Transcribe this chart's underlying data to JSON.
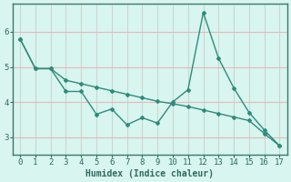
{
  "xlabel": "Humidex (Indice chaleur)",
  "x": [
    0,
    1,
    2,
    3,
    4,
    5,
    6,
    7,
    8,
    9,
    10,
    11,
    12,
    13,
    14,
    15,
    16,
    17
  ],
  "line1": [
    5.8,
    4.95,
    4.95,
    4.3,
    4.3,
    3.65,
    3.8,
    3.35,
    3.55,
    3.4,
    4.0,
    4.35,
    6.55,
    5.25,
    4.4,
    3.7,
    3.2,
    2.75
  ],
  "line2": [
    5.8,
    4.95,
    4.95,
    4.62,
    4.52,
    4.42,
    4.32,
    4.22,
    4.12,
    4.02,
    3.95,
    3.87,
    3.77,
    3.67,
    3.57,
    3.47,
    3.1,
    2.75
  ],
  "line_color": "#2e8b7a",
  "bg_color": "#d8f5f0",
  "grid_color_h": "#e8b8b8",
  "grid_color_v": "#c8d8d0",
  "ylim": [
    2.5,
    6.8
  ],
  "yticks": [
    3,
    4,
    5,
    6
  ],
  "xticks": [
    0,
    1,
    2,
    3,
    4,
    5,
    6,
    7,
    8,
    9,
    10,
    11,
    12,
    13,
    14,
    15,
    16,
    17
  ],
  "tick_color": "#2e6b60",
  "xlabel_color": "#2e6b60"
}
